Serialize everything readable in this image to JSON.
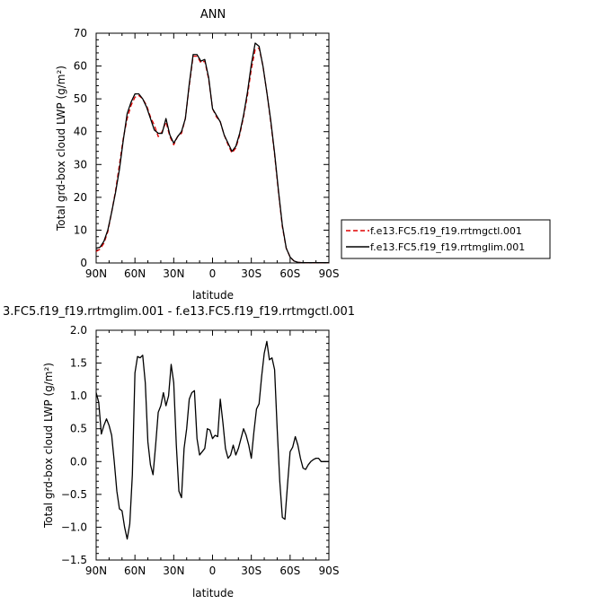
{
  "chart_data": [
    {
      "type": "line",
      "title": "ANN",
      "xlabel": "latitude",
      "ylabel": "Total grd-box cloud LWP (g/m²)",
      "xlim": [
        90,
        -90
      ],
      "ylim": [
        0,
        70
      ],
      "x_ticks": [
        90,
        60,
        30,
        0,
        -30,
        -60,
        -90
      ],
      "x_tick_labels": [
        "90N",
        "60N",
        "30N",
        "0",
        "30S",
        "60S",
        "90S"
      ],
      "y_ticks": [
        0,
        10,
        20,
        30,
        40,
        50,
        60,
        70
      ],
      "y_tick_labels": [
        "0",
        "10",
        "20",
        "30",
        "40",
        "50",
        "60",
        "70"
      ],
      "grid": false,
      "legend_position": "right, outside plot",
      "x": [
        90,
        87,
        84,
        81,
        78,
        75,
        72,
        69,
        66,
        63,
        60,
        57,
        54,
        51,
        48,
        45,
        42,
        39,
        36,
        33,
        30,
        27,
        24,
        21,
        18,
        15,
        12,
        9,
        6,
        3,
        0,
        -3,
        -6,
        -9,
        -12,
        -15,
        -18,
        -21,
        -24,
        -27,
        -30,
        -33,
        -36,
        -39,
        -42,
        -45,
        -48,
        -51,
        -54,
        -57,
        -60,
        -63,
        -66,
        -69,
        -72,
        -75,
        -78,
        -81,
        -84,
        -87,
        -90
      ],
      "series": [
        {
          "name": "f.e13.FC5.f19_f19.rrtmgctl.001",
          "color": "#e00000",
          "dash": "dashed",
          "values": [
            3.5,
            4.2,
            6.0,
            9.5,
            15.5,
            22.0,
            30.0,
            38.0,
            44.0,
            48.0,
            50.5,
            51.0,
            50.0,
            48.0,
            44.5,
            42.0,
            38.5,
            40.0,
            43.0,
            38.5,
            36.0,
            38.5,
            39.5,
            44.0,
            54.0,
            63.0,
            63.0,
            61.0,
            61.5,
            56.0,
            47.0,
            44.5,
            43.0,
            39.0,
            36.0,
            33.5,
            35.0,
            39.0,
            44.5,
            51.0,
            59.0,
            65.0,
            65.5,
            60.0,
            52.0,
            43.0,
            33.0,
            21.5,
            11.0,
            4.5,
            1.8,
            0.6,
            0.2,
            0.1,
            0.1,
            0.1,
            0.1,
            0.1,
            0.1,
            0.1,
            0.1
          ]
        },
        {
          "name": "f.e13.FC5.f19_f19.rrtmglim.001",
          "color": "#000000",
          "dash": "solid",
          "values": [
            4.5,
            4.8,
            6.6,
            10.0,
            15.5,
            21.5,
            28.5,
            37.5,
            45.5,
            49.0,
            51.5,
            51.5,
            50.0,
            47.5,
            44.0,
            40.5,
            39.5,
            39.5,
            44.0,
            39.0,
            36.5,
            38.5,
            40.0,
            44.0,
            54.5,
            63.5,
            63.5,
            61.5,
            62.0,
            56.5,
            47.0,
            45.0,
            43.0,
            39.0,
            36.5,
            34.0,
            35.5,
            39.5,
            45.0,
            52.0,
            60.5,
            67.0,
            66.0,
            60.0,
            52.0,
            43.5,
            33.5,
            22.0,
            11.5,
            4.5,
            1.8,
            0.6,
            0.2,
            0.1,
            0.1,
            0.1,
            0.1,
            0.1,
            0.1,
            0.1,
            0.1
          ]
        }
      ]
    },
    {
      "type": "line",
      "title": "3.FC5.f19_f19.rrtmglim.001 - f.e13.FC5.f19_f19.rrtmgctl.001",
      "xlabel": "latitude",
      "ylabel": "Total grd-box cloud LWP (g/m²)",
      "xlim": [
        90,
        -90
      ],
      "ylim": [
        -1.5,
        2.0
      ],
      "x_ticks": [
        90,
        60,
        30,
        0,
        -30,
        -60,
        -90
      ],
      "x_tick_labels": [
        "90N",
        "60N",
        "30N",
        "0",
        "30S",
        "60S",
        "90S"
      ],
      "y_ticks": [
        -1.5,
        -1.0,
        -0.5,
        0.0,
        0.5,
        1.0,
        1.5,
        2.0
      ],
      "y_tick_labels": [
        "−1.5",
        "−1.0",
        "−0.5",
        "0.0",
        "0.5",
        "1.0",
        "1.5",
        "2.0"
      ],
      "grid": false,
      "series": [
        {
          "color": "#000000",
          "dash": "solid",
          "x": [
            90,
            88,
            86,
            84,
            82,
            80,
            78,
            76,
            74,
            72,
            70,
            68,
            66,
            64,
            62,
            60,
            58,
            56,
            54,
            52,
            50,
            48,
            46,
            44,
            42,
            40,
            38,
            36,
            34,
            32,
            30,
            28,
            26,
            24,
            22,
            20,
            18,
            16,
            14,
            12,
            10,
            8,
            6,
            4,
            2,
            0,
            -2,
            -4,
            -6,
            -8,
            -10,
            -12,
            -14,
            -16,
            -18,
            -20,
            -22,
            -24,
            -26,
            -28,
            -30,
            -32,
            -34,
            -36,
            -38,
            -40,
            -42,
            -44,
            -46,
            -48,
            -50,
            -52,
            -54,
            -56,
            -58,
            -60,
            -62,
            -64,
            -66,
            -68,
            -70,
            -72,
            -74,
            -76,
            -78,
            -80,
            -82,
            -84,
            -86,
            -88,
            -90
          ],
          "values": [
            1.05,
            0.9,
            0.42,
            0.55,
            0.65,
            0.55,
            0.4,
            0.0,
            -0.45,
            -0.72,
            -0.75,
            -1.0,
            -1.18,
            -0.95,
            -0.2,
            1.35,
            1.6,
            1.58,
            1.62,
            1.2,
            0.3,
            -0.05,
            -0.2,
            0.25,
            0.75,
            0.85,
            1.05,
            0.85,
            1.0,
            1.48,
            1.2,
            0.25,
            -0.45,
            -0.55,
            0.2,
            0.5,
            0.95,
            1.05,
            1.08,
            0.35,
            0.1,
            0.15,
            0.2,
            0.5,
            0.48,
            0.35,
            0.4,
            0.38,
            0.95,
            0.6,
            0.2,
            0.05,
            0.1,
            0.25,
            0.1,
            0.2,
            0.35,
            0.5,
            0.4,
            0.25,
            0.05,
            0.45,
            0.8,
            0.88,
            1.3,
            1.65,
            1.83,
            1.55,
            1.58,
            1.4,
            0.5,
            -0.3,
            -0.85,
            -0.88,
            -0.35,
            0.15,
            0.22,
            0.38,
            0.25,
            0.05,
            -0.1,
            -0.12,
            -0.05,
            0.0,
            0.03,
            0.05,
            0.05,
            0.0,
            0.0,
            0.0,
            0.0
          ]
        }
      ]
    }
  ]
}
